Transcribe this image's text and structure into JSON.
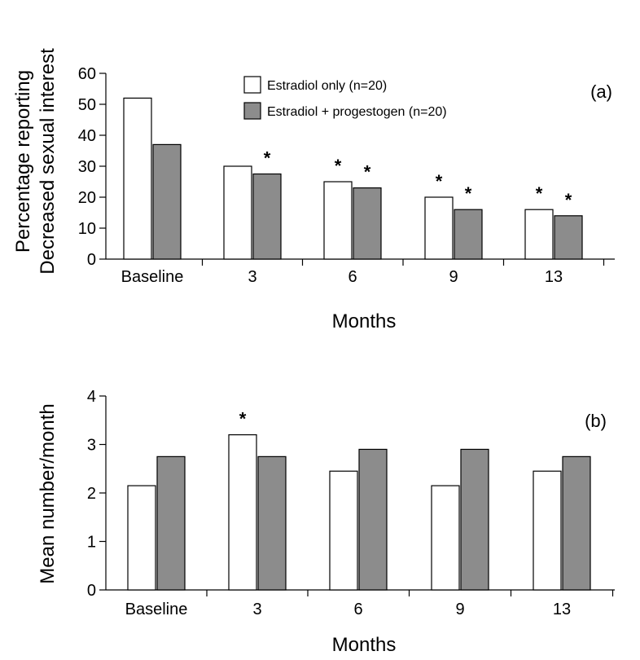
{
  "chart_data": [
    {
      "type": "bar",
      "panel_label": "(a)",
      "categories": [
        "Baseline",
        "3",
        "6",
        "9",
        "13"
      ],
      "series": [
        {
          "name": "Estradiol only (n=20)",
          "color": "#ffffff",
          "values": [
            52,
            30,
            25,
            20,
            16
          ]
        },
        {
          "name": "Estradiol + progestogen (n=20)",
          "color": "#8c8c8c",
          "values": [
            37,
            27.5,
            23,
            16,
            14
          ]
        }
      ],
      "significance": [
        [
          false,
          false
        ],
        [
          false,
          true
        ],
        [
          true,
          true
        ],
        [
          true,
          true
        ],
        [
          true,
          true
        ]
      ],
      "significance_marker": "*",
      "xlabel": "Months",
      "ylabel": [
        "Percentage reporting",
        "Decreased sexual interest"
      ],
      "ylim": [
        0,
        60
      ],
      "yticks": [
        "0",
        "10",
        "20",
        "30",
        "40",
        "50",
        "60"
      ],
      "legend_position": "top-center"
    },
    {
      "type": "bar",
      "panel_label": "(b)",
      "categories": [
        "Baseline",
        "3",
        "6",
        "9",
        "13"
      ],
      "series": [
        {
          "name": "Estradiol only (n=20)",
          "color": "#ffffff",
          "values": [
            2.15,
            3.2,
            2.45,
            2.15,
            2.45
          ]
        },
        {
          "name": "Estradiol + progestogen (n=20)",
          "color": "#8c8c8c",
          "values": [
            2.75,
            2.75,
            2.9,
            2.9,
            2.75
          ]
        }
      ],
      "significance": [
        [
          false,
          false
        ],
        [
          true,
          false
        ],
        [
          false,
          false
        ],
        [
          false,
          false
        ],
        [
          false,
          false
        ]
      ],
      "significance_marker": "*",
      "xlabel": "Months",
      "ylabel": [
        "Mean number/month"
      ],
      "ylim": [
        0,
        4
      ],
      "yticks": [
        "0",
        "1",
        "2",
        "3",
        "4"
      ]
    }
  ]
}
